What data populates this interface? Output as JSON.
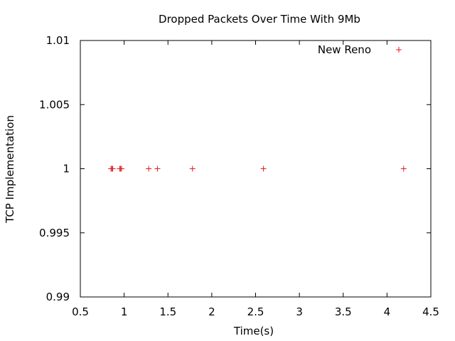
{
  "chart_data": {
    "type": "scatter",
    "title": "Dropped Packets Over Time With 9Mb",
    "xlabel": "Time(s)",
    "ylabel": "TCP Implementation",
    "xlim": [
      0.5,
      4.5
    ],
    "ylim": [
      0.99,
      1.01
    ],
    "x_ticks": [
      "0.5",
      "1",
      "1.5",
      "2",
      "2.5",
      "3",
      "3.5",
      "4",
      "4.5"
    ],
    "y_ticks": [
      "0.99",
      "0.995",
      "1",
      "1.005",
      "1.01"
    ],
    "grid": false,
    "legend_position": "top-right",
    "series": [
      {
        "name": "New Reno",
        "color": "#e31a1c",
        "marker": "+",
        "points": [
          {
            "x": 0.85,
            "y": 1
          },
          {
            "x": 0.86,
            "y": 1
          },
          {
            "x": 0.87,
            "y": 1
          },
          {
            "x": 0.95,
            "y": 1
          },
          {
            "x": 0.96,
            "y": 1
          },
          {
            "x": 0.97,
            "y": 1
          },
          {
            "x": 1.28,
            "y": 1
          },
          {
            "x": 1.38,
            "y": 1
          },
          {
            "x": 1.78,
            "y": 1
          },
          {
            "x": 2.59,
            "y": 1
          },
          {
            "x": 4.19,
            "y": 1
          }
        ]
      }
    ]
  }
}
